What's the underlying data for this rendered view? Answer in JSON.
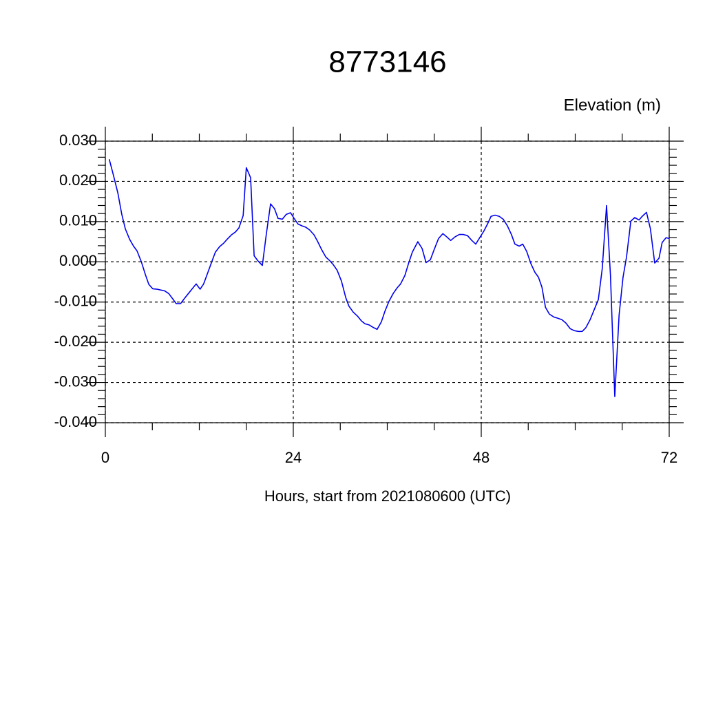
{
  "chart_data": {
    "type": "line",
    "title": "8773146",
    "subtitle": "Elevation (m)",
    "x_label": "Hours, start from 2021080600 (UTC)",
    "xlim": [
      0,
      72
    ],
    "xticks": [
      0,
      24,
      48,
      72
    ],
    "ylim": [
      -0.04,
      0.03
    ],
    "yticks": [
      {
        "value": -0.04,
        "label": "-0.040"
      },
      {
        "value": -0.03,
        "label": "-0.030"
      },
      {
        "value": -0.02,
        "label": "-0.020"
      },
      {
        "value": -0.01,
        "label": "-0.010"
      },
      {
        "value": 0,
        "label": "0.000"
      },
      {
        "value": 0.01,
        "label": "0.010"
      },
      {
        "value": 0.02,
        "label": "0.020"
      },
      {
        "value": 0.03,
        "label": "0.030"
      }
    ],
    "grid": true,
    "series": [
      {
        "name": "Elevation",
        "color": "#0000ee",
        "x": [
          0.5,
          1.05,
          1.6,
          2.1,
          2.55,
          3.1,
          3.6,
          4.05,
          4.6,
          5.1,
          5.55,
          6.05,
          6.6,
          7.05,
          7.55,
          8.1,
          8.6,
          9.05,
          9.6,
          10.1,
          10.6,
          11.1,
          11.6,
          12.1,
          12.55,
          13.1,
          13.55,
          14.05,
          14.6,
          15.1,
          15.55,
          16.1,
          16.6,
          17.05,
          17.6,
          18.0,
          18.55,
          19.0,
          19.5,
          20.05,
          20.55,
          21.1,
          21.6,
          22.05,
          22.6,
          23.1,
          23.65,
          24.1,
          24.6,
          25.15,
          25.6,
          26.1,
          26.65,
          27.1,
          27.6,
          28.15,
          28.65,
          29.1,
          29.6,
          30.15,
          30.7,
          31.1,
          31.65,
          32.2,
          32.7,
          33.15,
          33.7,
          34.2,
          34.7,
          35.25,
          35.7,
          36.2,
          36.75,
          37.25,
          37.7,
          38.25,
          38.75,
          39.2,
          39.9,
          40.45,
          40.95,
          41.5,
          42.0,
          42.55,
          43.1,
          43.6,
          44.1,
          44.65,
          45.2,
          45.7,
          46.25,
          46.8,
          47.3,
          47.8,
          48.35,
          48.8,
          49.25,
          49.75,
          50.3,
          50.8,
          51.35,
          51.85,
          52.3,
          52.85,
          53.3,
          53.8,
          54.35,
          54.85,
          55.3,
          55.75,
          56.2,
          56.7,
          57.25,
          57.75,
          58.3,
          58.8,
          59.35,
          59.85,
          60.4,
          60.9,
          61.35,
          61.9,
          62.4,
          62.95,
          63.45,
          64.0,
          64.5,
          65.05,
          65.6,
          66.1,
          66.55,
          67.1,
          67.6,
          68.15,
          68.55,
          69.1,
          69.6,
          70.15,
          70.7,
          71.1,
          71.6,
          72.0
        ],
        "values": [
          0.0255,
          0.0214,
          0.0171,
          0.0118,
          0.0082,
          0.0056,
          0.0039,
          0.0027,
          0.0,
          -0.0031,
          -0.0056,
          -0.0067,
          -0.0068,
          -0.007,
          -0.0072,
          -0.0079,
          -0.0092,
          -0.0104,
          -0.0104,
          -0.0091,
          -0.0079,
          -0.0067,
          -0.0055,
          -0.0068,
          -0.0055,
          -0.0026,
          -0.0002,
          0.0024,
          0.0038,
          0.0046,
          0.0056,
          0.0067,
          0.0074,
          0.0084,
          0.0115,
          0.0234,
          0.0209,
          0.0015,
          0.0002,
          -0.0009,
          0.0068,
          0.0144,
          0.0132,
          0.0108,
          0.0106,
          0.0118,
          0.0122,
          0.0108,
          0.0094,
          0.0089,
          0.0086,
          0.0079,
          0.0067,
          0.0051,
          0.0031,
          0.0012,
          0.0003,
          -0.0007,
          -0.0021,
          -0.0048,
          -0.0089,
          -0.011,
          -0.0125,
          -0.0135,
          -0.0147,
          -0.0154,
          -0.0157,
          -0.0163,
          -0.0168,
          -0.0149,
          -0.0123,
          -0.0099,
          -0.0079,
          -0.0065,
          -0.0055,
          -0.0034,
          -0.0002,
          0.0024,
          0.005,
          0.0033,
          -0.0002,
          0.0005,
          0.0031,
          0.0058,
          0.007,
          0.0062,
          0.0053,
          0.0062,
          0.0068,
          0.0068,
          0.0065,
          0.0053,
          0.0044,
          0.006,
          0.0077,
          0.0094,
          0.0113,
          0.0116,
          0.0113,
          0.0106,
          0.0089,
          0.0068,
          0.0044,
          0.0039,
          0.0044,
          0.0026,
          -0.0005,
          -0.0026,
          -0.0038,
          -0.0063,
          -0.0113,
          -0.013,
          -0.0137,
          -0.014,
          -0.0144,
          -0.0152,
          -0.0166,
          -0.0171,
          -0.0173,
          -0.0173,
          -0.0164,
          -0.0144,
          -0.012,
          -0.0094,
          -0.0017,
          0.014,
          -0.0034,
          -0.0335,
          -0.0133,
          -0.0039,
          0.0012,
          0.0101,
          0.011,
          0.0104,
          0.0113,
          0.0123,
          0.0082,
          -0.0003,
          0.0009,
          0.0048,
          0.006,
          0.0058
        ]
      }
    ]
  }
}
